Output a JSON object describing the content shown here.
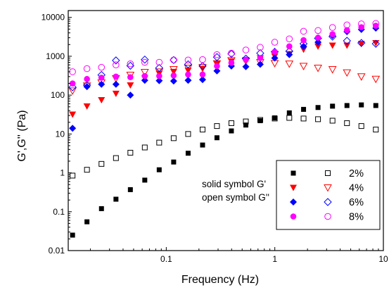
{
  "chart_data": {
    "type": "scatter",
    "title": "",
    "xlabel": "Frequency (Hz)",
    "ylabel": "G',G'' (Pa)",
    "xscale": "log",
    "yscale": "log",
    "xlim": [
      0.0125,
      10
    ],
    "ylim": [
      0.01,
      15000
    ],
    "x_tick_labels": [
      "0.1",
      "1",
      "10"
    ],
    "y_tick_labels": [
      "0.01",
      "0.1",
      "1",
      "10",
      "100",
      "1000",
      "10000"
    ],
    "x_ticks": [
      0.1,
      1,
      10
    ],
    "y_ticks": [
      0.01,
      0.1,
      1,
      10,
      100,
      1000,
      10000
    ],
    "grid": false,
    "legend_position": "bottom-right",
    "annotations": [
      "solid symbol G'",
      "open symbol G''"
    ],
    "x": [
      0.0137,
      0.0186,
      0.0253,
      0.0344,
      0.0467,
      0.0634,
      0.0861,
      0.117,
      0.159,
      0.216,
      0.293,
      0.398,
      0.541,
      0.734,
      0.998,
      1.36,
      1.84,
      2.5,
      3.4,
      4.62,
      6.27,
      8.52
    ],
    "series": [
      {
        "name": "2%",
        "kind": "G'",
        "marker": "square",
        "filled": true,
        "color": "#000000",
        "values": [
          0.025,
          0.055,
          0.12,
          0.21,
          0.37,
          0.65,
          1.2,
          1.9,
          3.2,
          5.2,
          8,
          12,
          17,
          22,
          26,
          35,
          43,
          48,
          52,
          54,
          56,
          54
        ]
      },
      {
        "name": "2%",
        "kind": "G''",
        "marker": "square",
        "filled": false,
        "color": "#000000",
        "values": [
          0.85,
          1.2,
          1.7,
          2.4,
          3.3,
          4.5,
          6,
          7.8,
          10,
          13,
          16,
          19,
          21,
          23,
          25,
          26,
          25,
          24,
          22,
          19,
          16,
          13
        ]
      },
      {
        "name": "4%",
        "kind": "G'",
        "marker": "triangle-down",
        "filled": true,
        "color": "#ff0000",
        "values": [
          32,
          52,
          75,
          110,
          180,
          270,
          360,
          400,
          430,
          480,
          650,
          740,
          810,
          900,
          1000,
          1150,
          1500,
          1800,
          1900,
          1900,
          2100,
          2200
        ]
      },
      {
        "name": "4%",
        "kind": "G''",
        "marker": "triangle-down",
        "filled": false,
        "color": "#ff0000",
        "values": [
          130,
          175,
          210,
          270,
          330,
          390,
          400,
          460,
          500,
          520,
          650,
          780,
          760,
          700,
          660,
          640,
          560,
          500,
          460,
          380,
          300,
          260
        ]
      },
      {
        "name": "6%",
        "kind": "G'",
        "marker": "diamond",
        "filled": true,
        "color": "#0000ff",
        "values": [
          14,
          165,
          190,
          190,
          100,
          240,
          235,
          230,
          240,
          250,
          420,
          560,
          540,
          620,
          900,
          1100,
          1800,
          2300,
          3400,
          4300,
          4900,
          5300
        ]
      },
      {
        "name": "6%",
        "kind": "G''",
        "marker": "diamond",
        "filled": false,
        "color": "#0000ff",
        "values": [
          160,
          180,
          330,
          780,
          570,
          820,
          500,
          800,
          620,
          560,
          950,
          1150,
          870,
          1200,
          1300,
          1350,
          2100,
          2900,
          3200,
          2500,
          2200,
          2100
        ]
      },
      {
        "name": "8%",
        "kind": "G'",
        "marker": "circle",
        "filled": true,
        "color": "#ff00ff",
        "values": [
          200,
          260,
          280,
          300,
          290,
          310,
          310,
          320,
          340,
          340,
          560,
          680,
          820,
          900,
          1300,
          1800,
          2600,
          3000,
          3700,
          4700,
          5600,
          6100
        ]
      },
      {
        "name": "8%",
        "kind": "G''",
        "marker": "circle",
        "filled": false,
        "color": "#ff00ff",
        "values": [
          400,
          480,
          520,
          600,
          640,
          700,
          700,
          800,
          800,
          820,
          1100,
          1200,
          1450,
          1700,
          2300,
          2800,
          4400,
          4600,
          5500,
          6400,
          6800,
          7000
        ]
      }
    ],
    "legend": [
      {
        "label": "2%",
        "color": "#000000",
        "marker": "square"
      },
      {
        "label": "4%",
        "color": "#ff0000",
        "marker": "triangle-down"
      },
      {
        "label": "6%",
        "color": "#0000ff",
        "marker": "diamond"
      },
      {
        "label": "8%",
        "color": "#ff00ff",
        "marker": "circle"
      }
    ]
  }
}
